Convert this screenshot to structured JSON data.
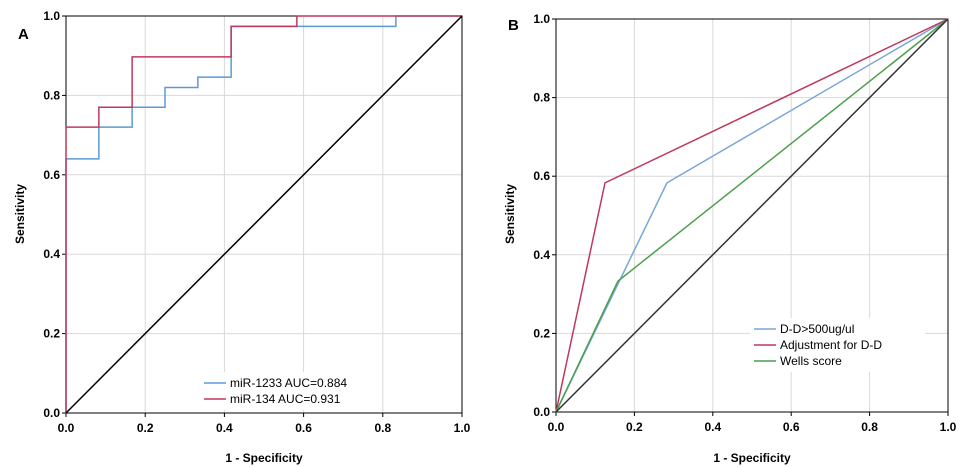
{
  "chart_data": [
    {
      "type": "line",
      "panel": "A",
      "xlabel": "1 - Specificity",
      "ylabel": "Sensitivity",
      "xlim": [
        0,
        1
      ],
      "ylim": [
        0,
        1
      ],
      "xticks": [
        "0.0",
        "0.2",
        "0.4",
        "0.6",
        "0.8",
        "1.0"
      ],
      "yticks": [
        "0.0",
        "0.2",
        "0.4",
        "0.6",
        "0.8",
        "1.0"
      ],
      "grid": "x-and-y",
      "legend": "bottom-center",
      "series": [
        {
          "name": "miR-1233 AUC=0.884",
          "color": "#5b9bd5",
          "points": [
            [
              0,
              0
            ],
            [
              0,
              0.64
            ],
            [
              0.083,
              0.64
            ],
            [
              0.083,
              0.72
            ],
            [
              0.167,
              0.72
            ],
            [
              0.167,
              0.77
            ],
            [
              0.25,
              0.77
            ],
            [
              0.25,
              0.82
            ],
            [
              0.333,
              0.82
            ],
            [
              0.333,
              0.846
            ],
            [
              0.417,
              0.846
            ],
            [
              0.417,
              0.974
            ],
            [
              0.583,
              0.974
            ],
            [
              0.833,
              0.974
            ],
            [
              0.833,
              1.0
            ],
            [
              1.0,
              1.0
            ]
          ]
        },
        {
          "name": "miR-134 AUC=0.931",
          "color": "#c0385c",
          "points": [
            [
              0,
              0
            ],
            [
              0,
              0.72
            ],
            [
              0.083,
              0.72
            ],
            [
              0.083,
              0.77
            ],
            [
              0.167,
              0.77
            ],
            [
              0.167,
              0.897
            ],
            [
              0.417,
              0.897
            ],
            [
              0.417,
              0.974
            ],
            [
              0.583,
              0.974
            ],
            [
              0.583,
              1.0
            ],
            [
              1.0,
              1.0
            ]
          ]
        },
        {
          "name": "",
          "color": "#000000",
          "points": [
            [
              0,
              0
            ],
            [
              1,
              1
            ]
          ]
        }
      ]
    },
    {
      "type": "line",
      "panel": "B",
      "xlabel": "1 - Specificity",
      "ylabel": "Sensitivity",
      "xlim": [
        0,
        1
      ],
      "ylim": [
        0,
        1
      ],
      "xticks": [
        "0.0",
        "0.2",
        "0.4",
        "0.6",
        "0.8",
        "1.0"
      ],
      "yticks": [
        "0.0",
        "0.2",
        "0.4",
        "0.6",
        "0.8",
        "1.0"
      ],
      "grid": "x-and-y",
      "legend": "bottom-right",
      "series": [
        {
          "name": "D-D>500ug/ul",
          "color": "#7aa6d8",
          "points": [
            [
              0,
              0
            ],
            [
              0.283,
              0.583
            ],
            [
              1,
              1
            ]
          ]
        },
        {
          "name": "Adjustment for D-D",
          "color": "#c0385c",
          "points": [
            [
              0,
              0
            ],
            [
              0.125,
              0.583
            ],
            [
              1,
              1
            ]
          ]
        },
        {
          "name": "Wells score",
          "color": "#4c9f4c",
          "points": [
            [
              0,
              0
            ],
            [
              0.158,
              0.333
            ],
            [
              1,
              1
            ]
          ]
        },
        {
          "name": "",
          "color": "#333333",
          "points": [
            [
              0,
              0
            ],
            [
              1,
              1
            ]
          ]
        }
      ]
    }
  ]
}
